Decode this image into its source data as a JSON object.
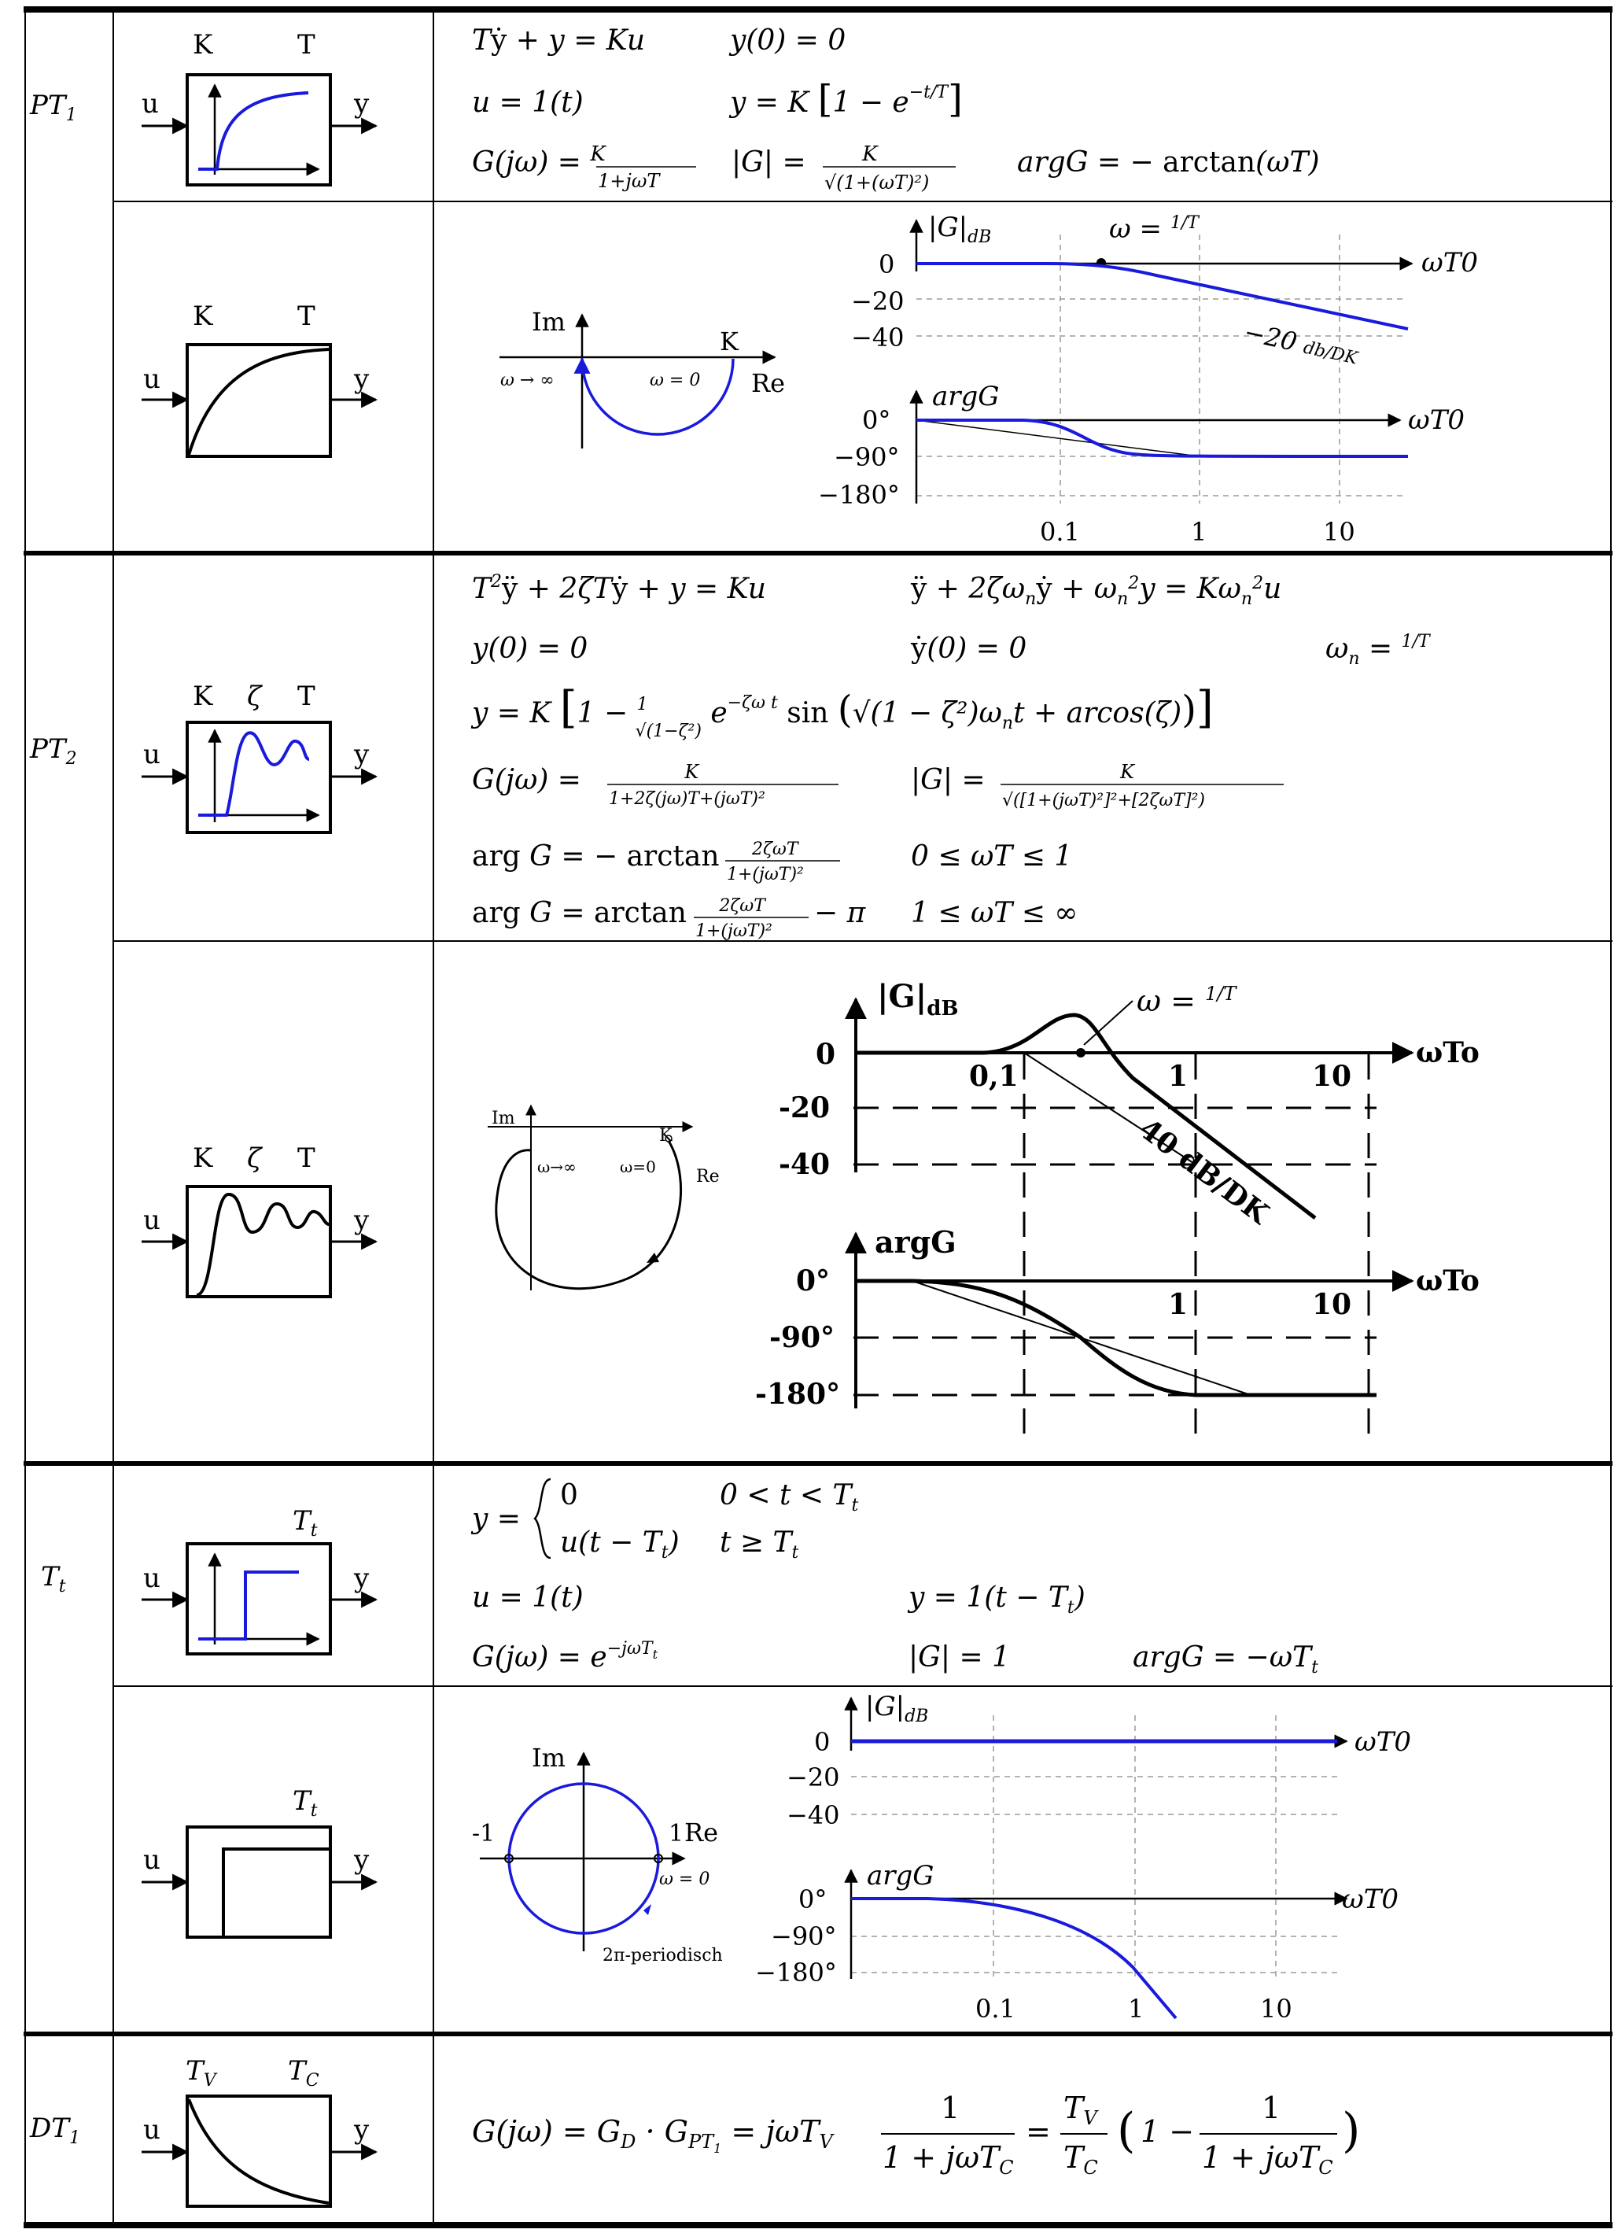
{
  "sections": [
    {
      "id": "PT1",
      "name": "PT",
      "name_sub": "1",
      "block1_labels": [
        "K",
        "T"
      ],
      "block2_labels": [
        "K",
        "T"
      ],
      "io": [
        "u",
        "y"
      ],
      "formulas": [
        [
          "Tẏ + y = Ku",
          "y(0) = 0"
        ],
        [
          "u = 1(t)",
          "y = K [1 − e^(−t/T)]"
        ],
        [
          "G(jω) = K / (1+jωT)",
          "|G| = K / √(1+(ωT)²)",
          "argG = − arctan(ωT)"
        ]
      ],
      "nyquist": {
        "im": "Im",
        "re": "Re",
        "k": "K",
        "w_inf": "ω → ∞",
        "w_zero": "ω = 0"
      },
      "bode": {
        "mag_label": "|G|dB",
        "mag_ticks": [
          "0",
          "−20",
          "−40"
        ],
        "phase_label": "argG",
        "phase_ticks": [
          "0°",
          "−90°",
          "−180°"
        ],
        "x_label": "ωT0",
        "x_ticks": [
          "0.1",
          "1",
          "10"
        ],
        "corner_label": "ω = 1/T",
        "slope_label": "−20 db/DK"
      }
    },
    {
      "id": "PT2",
      "name": "PT",
      "name_sub": "2",
      "block1_labels": [
        "K",
        "ζ",
        "T"
      ],
      "block2_labels": [
        "K",
        "ζ",
        "T"
      ],
      "io": [
        "u",
        "y"
      ],
      "formulas": [
        [
          "T²ÿ + 2ζTẏ + y = Ku",
          "ÿ + 2ζωnẏ + ωn²y = Kωn²u"
        ],
        [
          "y(0) = 0",
          "ẏ(0) = 0",
          "ωn = 1/T"
        ],
        [
          "y = K [1 − (1/√(1−ζ²)) e^(−ζωn t) sin(√(1−ζ²) ωn t + arcos(ζ))]"
        ],
        [
          "G(jω) = K / (1+2ζ(jω)T+(jωT)²)",
          "|G| = K / √([1+(jωT)²]²+[2ζωT]²)"
        ],
        [
          "arg G = − arctan (2ζωT / (1+(jωT)²))",
          "0 ≤ ωT ≤ 1"
        ],
        [
          "arg G = arctan (2ζωT / (1+(jωT)²)) − π",
          "1 ≤ ωT ≤ ∞"
        ]
      ],
      "nyquist": {
        "im": "Im",
        "re": "Re",
        "k": "K",
        "w_inf": "ω→∞",
        "w_zero": "ω=0"
      },
      "bode": {
        "mag_label": "|G|dB",
        "mag_ticks": [
          "0",
          "-20",
          "-40"
        ],
        "phase_label": "argG",
        "phase_ticks": [
          "0°",
          "-90°",
          "-180°"
        ],
        "x_label": "ωTo",
        "x_ticks_mag": [
          "0,1",
          "1",
          "10"
        ],
        "x_ticks_phase": [
          "1",
          "10"
        ],
        "corner_label": "ω = 1/T",
        "slope_label": "40 dB/DK"
      }
    },
    {
      "id": "Tt",
      "name": "T",
      "name_sub": "t",
      "block1_labels": [
        "Tt"
      ],
      "block2_labels": [
        "Tt"
      ],
      "io": [
        "u",
        "y"
      ],
      "formulas": [
        [
          "y = { 0   0 < t < Tt ;  u(t − Tt)   t ≥ Tt }"
        ],
        [
          "u = 1(t)",
          "y = 1(t − Tt)"
        ],
        [
          "G(jω) = e^(−jωTt)",
          "|G| = 1",
          "argG = −ωTt"
        ]
      ],
      "nyquist": {
        "im": "Im",
        "re": "Re",
        "minus_one": "-1",
        "one": "1",
        "w_zero": "ω = 0",
        "periodic": "2π-periodisch"
      },
      "bode": {
        "mag_label": "|G|dB",
        "mag_ticks": [
          "0",
          "−20",
          "−40"
        ],
        "phase_label": "argG",
        "phase_ticks": [
          "0°",
          "−90°",
          "−180°"
        ],
        "x_label": "ωT0",
        "x_ticks": [
          "0.1",
          "1",
          "10"
        ]
      }
    },
    {
      "id": "DT1",
      "name": "DT",
      "name_sub": "1",
      "block1_labels": [
        "TV",
        "TC"
      ],
      "io": [
        "u",
        "y"
      ],
      "formulas": [
        [
          "G(jω) = GD · GPT1 = jωTV · 1/(1 + jωTC) = (TV/TC)(1 − 1/(1 + jωTC))"
        ]
      ]
    }
  ],
  "colors": {
    "ink": "#000000",
    "curve": "#1a1adc",
    "grid": "#9a9a9a"
  }
}
